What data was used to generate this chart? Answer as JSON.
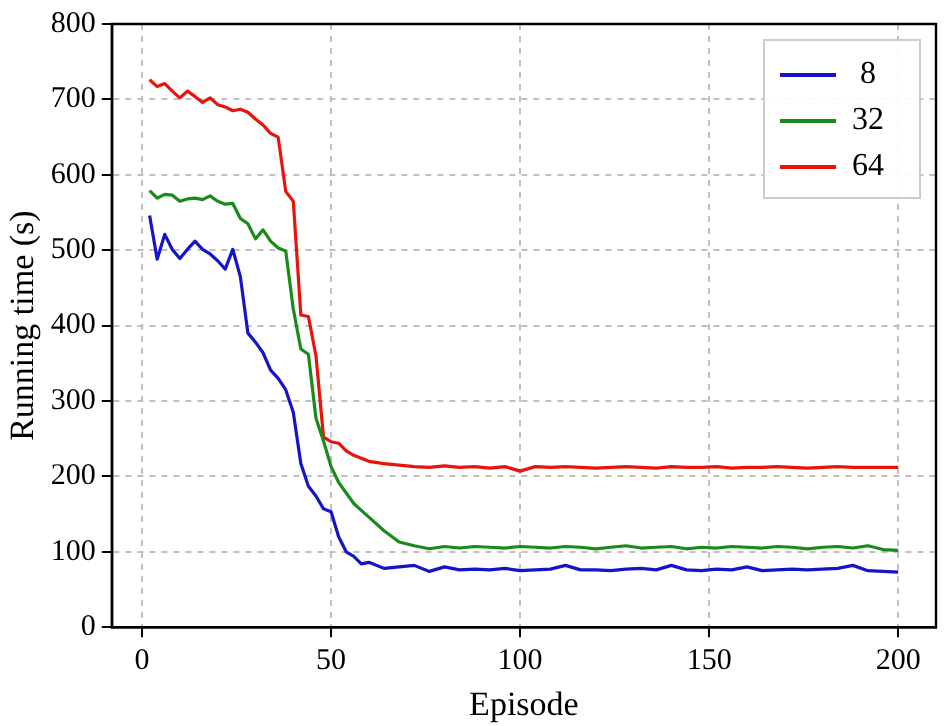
{
  "chart_data": {
    "type": "line",
    "xlabel": "Episode",
    "ylabel": "Running time (s)",
    "x": [
      2,
      4,
      6,
      8,
      10,
      12,
      14,
      16,
      18,
      20,
      22,
      24,
      26,
      28,
      30,
      32,
      34,
      36,
      38,
      40,
      42,
      44,
      46,
      48,
      50,
      52,
      54,
      56,
      58,
      60,
      64,
      68,
      72,
      76,
      80,
      84,
      88,
      92,
      96,
      100,
      104,
      108,
      112,
      116,
      120,
      124,
      128,
      132,
      136,
      140,
      144,
      148,
      152,
      156,
      160,
      164,
      168,
      172,
      176,
      180,
      184,
      188,
      192,
      196,
      200
    ],
    "series": [
      {
        "name": "8",
        "color": "#1414c8",
        "values": [
          546,
          488,
          521,
          501,
          489,
          501,
          512,
          501,
          495,
          486,
          475,
          501,
          465,
          390,
          378,
          364,
          341,
          330,
          315,
          285,
          217,
          187,
          174,
          157,
          153,
          120,
          100,
          94,
          84,
          86,
          78,
          80,
          82,
          74,
          80,
          76,
          77,
          76,
          78,
          75,
          76,
          77,
          82,
          76,
          76,
          75,
          77,
          78,
          76,
          82,
          76,
          75,
          77,
          76,
          80,
          75,
          76,
          77,
          76,
          77,
          78,
          82,
          75,
          74,
          73
        ]
      },
      {
        "name": "32",
        "color": "#1a8a1a",
        "values": [
          579,
          569,
          574,
          573,
          565,
          568,
          569,
          567,
          572,
          565,
          561,
          562,
          542,
          535,
          515,
          527,
          512,
          503,
          499,
          422,
          369,
          362,
          277,
          247,
          213,
          192,
          178,
          164,
          155,
          146,
          128,
          113,
          108,
          104,
          107,
          105,
          107,
          106,
          105,
          107,
          106,
          105,
          107,
          106,
          104,
          106,
          108,
          105,
          106,
          107,
          104,
          106,
          105,
          107,
          106,
          105,
          107,
          106,
          104,
          106,
          107,
          105,
          108,
          103,
          102
        ]
      },
      {
        "name": "64",
        "color": "#e8140c",
        "values": [
          726,
          717,
          721,
          711,
          702,
          711,
          704,
          696,
          702,
          693,
          690,
          685,
          687,
          683,
          674,
          666,
          655,
          650,
          578,
          565,
          414,
          412,
          360,
          252,
          246,
          244,
          234,
          228,
          224,
          220,
          217,
          215,
          213,
          212,
          214,
          212,
          213,
          211,
          213,
          207,
          213,
          212,
          213,
          212,
          211,
          212,
          213,
          212,
          211,
          213,
          212,
          212,
          213,
          211,
          212,
          212,
          213,
          212,
          211,
          212,
          213,
          212,
          212,
          212,
          212
        ]
      }
    ],
    "xlim": [
      -8,
      210
    ],
    "ylim": [
      0,
      800
    ],
    "xticks": [
      0,
      50,
      100,
      150,
      200
    ],
    "yticks": [
      0,
      100,
      200,
      300,
      400,
      500,
      600,
      700,
      800
    ],
    "grid": true,
    "legend": "top right",
    "marker": "none",
    "line_style": "solid"
  }
}
